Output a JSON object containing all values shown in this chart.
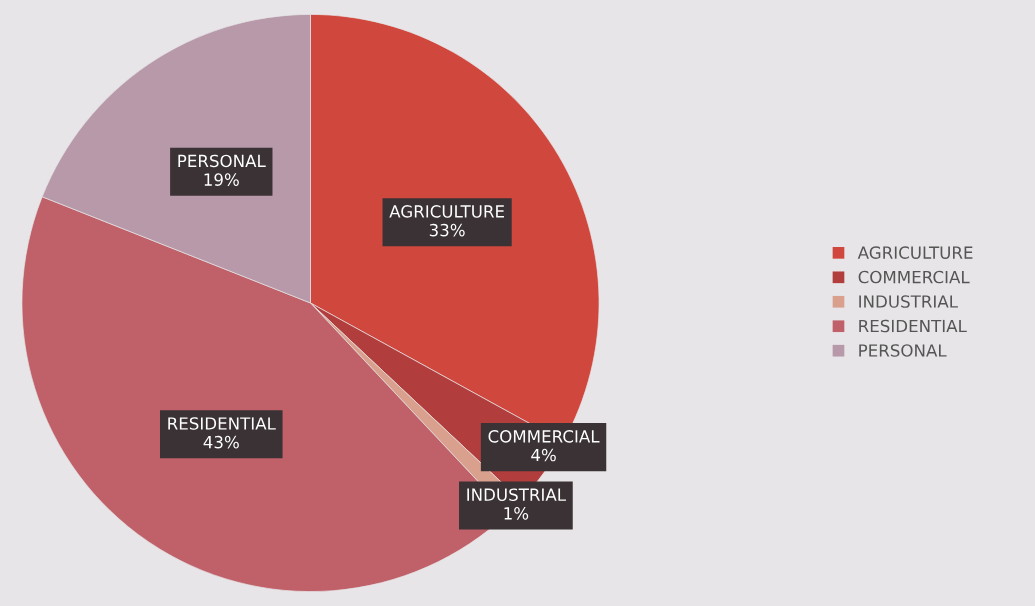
{
  "chart_data": {
    "type": "pie",
    "categories": [
      "AGRICULTURE",
      "COMMERCIAL",
      "INDUSTRIAL",
      "RESIDENTIAL",
      "PERSONAL"
    ],
    "values": [
      33,
      4,
      1,
      43,
      19
    ],
    "colors": [
      "#d0473d",
      "#b23d3d",
      "#d9a08e",
      "#c0616a",
      "#b799a9"
    ],
    "value_labels": [
      "33%",
      "4%",
      "1%",
      "43%",
      "19%"
    ],
    "legend": "right"
  }
}
